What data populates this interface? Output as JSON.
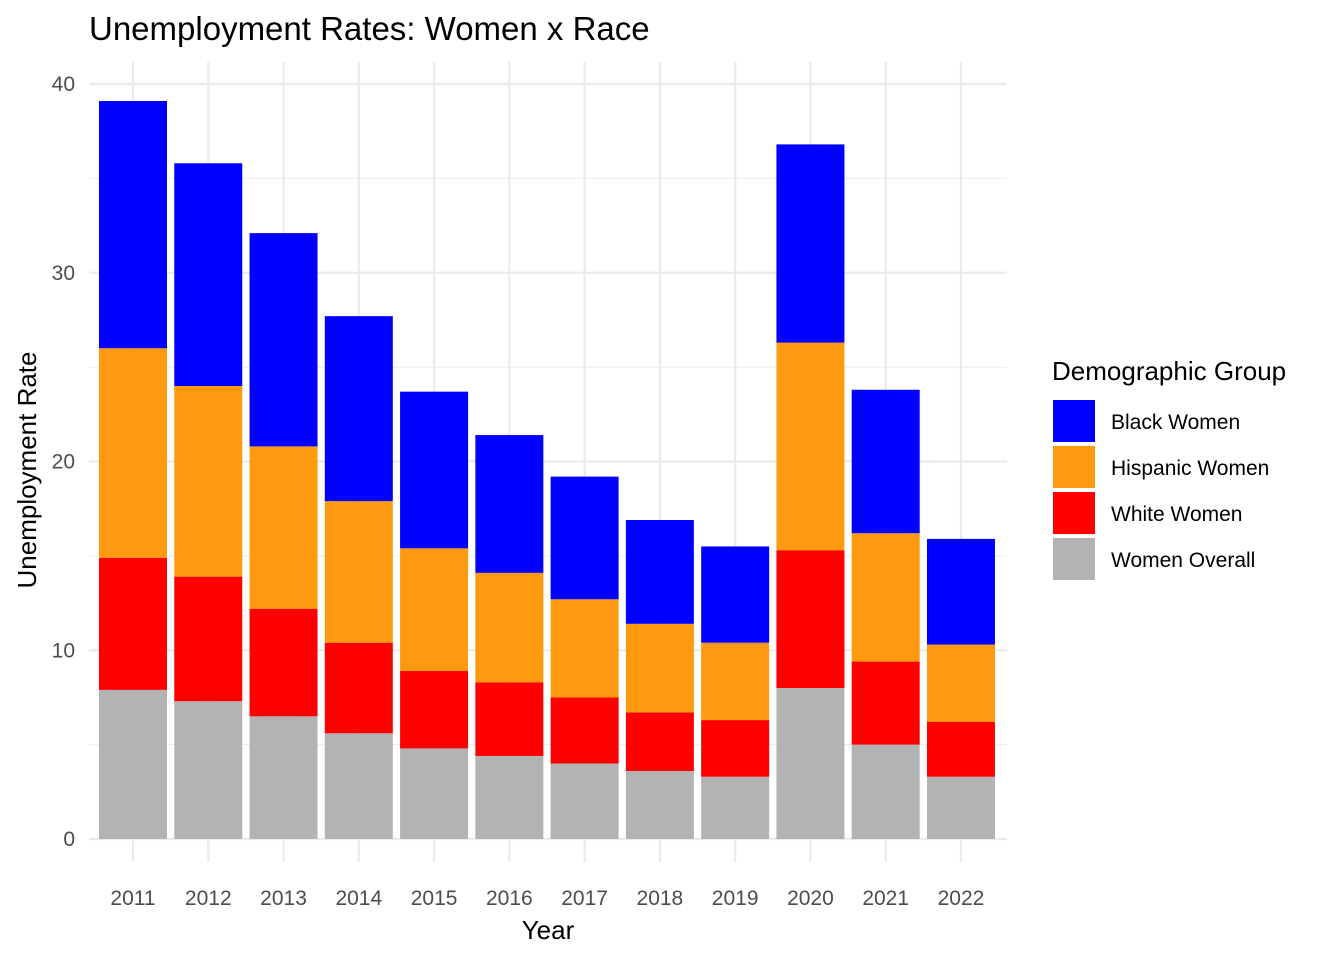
{
  "chart_data": {
    "type": "bar",
    "stacked": true,
    "title": "Unemployment Rates: Women x Race",
    "xlabel": "Year",
    "ylabel": "Unemployment Rate",
    "categories": [
      "2011",
      "2012",
      "2013",
      "2014",
      "2015",
      "2016",
      "2017",
      "2018",
      "2019",
      "2020",
      "2021",
      "2022"
    ],
    "ylim": [
      0,
      40
    ],
    "yticks": [
      0,
      10,
      20,
      30,
      40
    ],
    "grid": true,
    "legend": {
      "title": "Demographic Group",
      "position": "right"
    },
    "series": [
      {
        "name": "Women Overall",
        "color": "#b3b3b3",
        "values": [
          7.9,
          7.3,
          6.5,
          5.6,
          4.8,
          4.4,
          4.0,
          3.6,
          3.3,
          8.0,
          5.0,
          3.3
        ]
      },
      {
        "name": "White Women",
        "color": "#ff0000",
        "values": [
          7.0,
          6.6,
          5.7,
          4.8,
          4.1,
          3.9,
          3.5,
          3.1,
          3.0,
          7.3,
          4.4,
          2.9
        ]
      },
      {
        "name": "Hispanic Women",
        "color": "#ff9910",
        "values": [
          11.1,
          10.1,
          8.6,
          7.5,
          6.5,
          5.8,
          5.2,
          4.7,
          4.1,
          11.0,
          6.8,
          4.1
        ]
      },
      {
        "name": "Black Women",
        "color": "#0000ff",
        "values": [
          13.1,
          11.8,
          11.3,
          9.8,
          8.3,
          7.3,
          6.5,
          5.5,
          5.1,
          10.5,
          7.6,
          5.6
        ]
      }
    ],
    "legend_order": [
      "Black Women",
      "Hispanic Women",
      "White Women",
      "Women Overall"
    ]
  }
}
